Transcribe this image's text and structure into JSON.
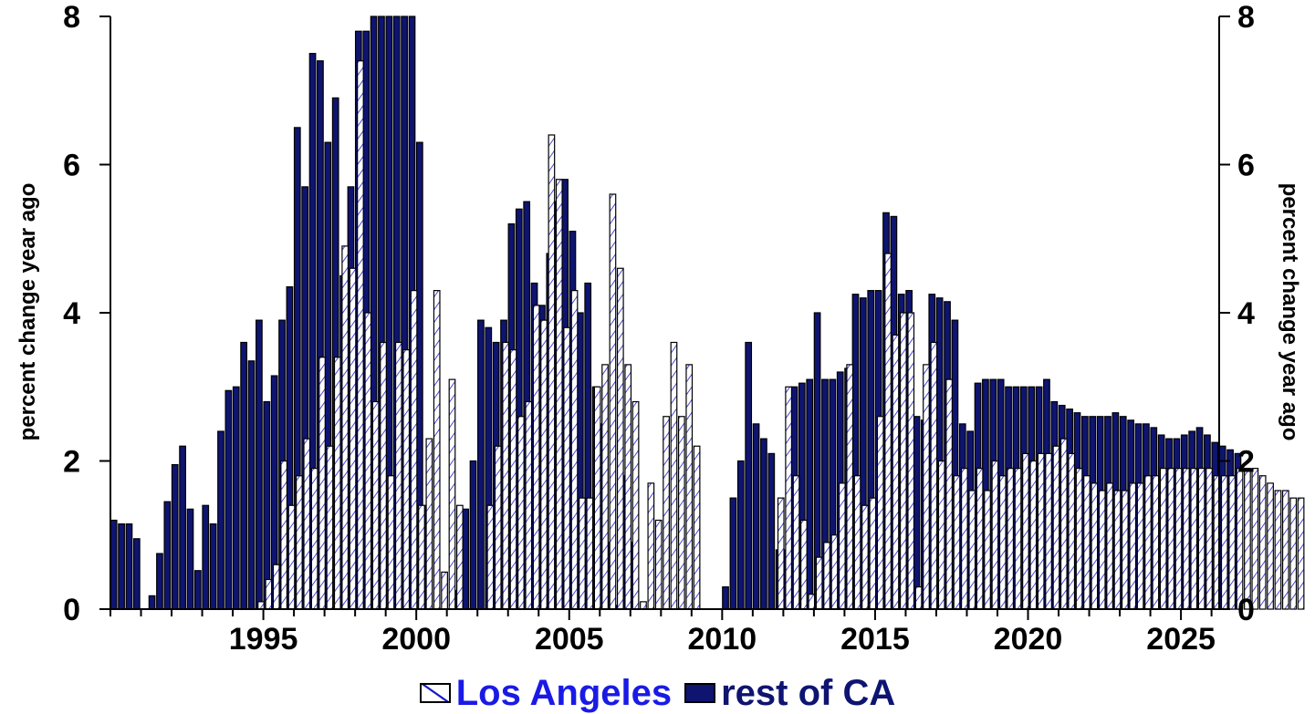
{
  "chart_data": {
    "type": "bar",
    "x_start": 1990.0,
    "x_step": 0.25,
    "x_range": [
      1990.0,
      2026.25
    ],
    "ylim": [
      0,
      8
    ],
    "yticks": [
      0,
      2,
      4,
      6,
      8
    ],
    "xticks": [
      1995,
      2000,
      2005,
      2010,
      2015,
      2020,
      2025
    ],
    "ylabel": "percent change year ago",
    "ylabel_right": "percent change year ago",
    "series": [
      {
        "name": "Los Angeles",
        "color": "#ffffff",
        "pattern_color": "#1c1cc8",
        "values": [
          0,
          0,
          0,
          0,
          0,
          0,
          0,
          0,
          0,
          0,
          0,
          0,
          0,
          0,
          0,
          0,
          0,
          0,
          0,
          0.1,
          0.4,
          0.6,
          2.0,
          1.4,
          1.8,
          2.3,
          1.9,
          3.4,
          2.2,
          3.4,
          4.9,
          4.6,
          7.4,
          4.0,
          2.8,
          3.6,
          1.8,
          3.6,
          3.5,
          4.3,
          1.4,
          2.3,
          4.3,
          0.5,
          3.1,
          1.4,
          0,
          0,
          0,
          1.4,
          2.2,
          3.6,
          3.5,
          2.6,
          2.8,
          4.1,
          3.9,
          6.4,
          5.8,
          3.8,
          4.3,
          1.5,
          1.5,
          3.0,
          3.3,
          5.6,
          4.6,
          3.3,
          2.8,
          0.1,
          1.7,
          1.2,
          2.6,
          3.6,
          2.6,
          3.3,
          2.2,
          0,
          0,
          0,
          0,
          0,
          0,
          0,
          0,
          0,
          0,
          1.5,
          3.0,
          1.8,
          1.2,
          0.2,
          0.7,
          0.9,
          1.0,
          1.7,
          3.3,
          1.8,
          1.4,
          1.5,
          2.6,
          4.8,
          3.7,
          4.0,
          4.0,
          0.3,
          3.3,
          3.6,
          2.0,
          3.1,
          1.8,
          1.9,
          1.6,
          1.9,
          1.6,
          2.0,
          1.8,
          1.9,
          1.9,
          2.1,
          2.0,
          2.1,
          2.1,
          2.2,
          2.3,
          2.1,
          1.9,
          1.8,
          1.7,
          1.6,
          1.7,
          1.6,
          1.6,
          1.7,
          1.7,
          1.8,
          1.8,
          1.9,
          1.9,
          1.9,
          1.9,
          1.9,
          1.9,
          1.9,
          1.8,
          1.8,
          1.8,
          1.9,
          1.9,
          1.9,
          1.8,
          1.7,
          1.6,
          1.6,
          1.5,
          1.5
        ]
      },
      {
        "name": "rest of CA",
        "color": "#0e1470",
        "values": [
          1.2,
          1.15,
          1.15,
          0.95,
          0,
          0.18,
          0.75,
          1.45,
          1.95,
          2.2,
          1.35,
          0.52,
          1.4,
          1.15,
          2.4,
          2.95,
          3.0,
          3.6,
          3.35,
          3.9,
          2.8,
          3.15,
          3.9,
          4.35,
          6.5,
          5.7,
          7.5,
          7.4,
          6.3,
          6.9,
          4.5,
          5.7,
          7.8,
          7.8,
          8,
          8,
          8,
          8,
          8,
          8,
          6.3,
          1.4,
          0,
          0,
          0,
          0.25,
          1.35,
          2.0,
          3.9,
          3.8,
          3.6,
          3.9,
          5.2,
          5.4,
          5.5,
          4.4,
          4.1,
          4.8,
          5.5,
          5.8,
          5.1,
          4.0,
          4.4,
          3.0,
          2.5,
          0.9,
          0.05,
          1.8,
          0.9,
          0,
          0,
          0,
          0,
          0,
          0,
          0,
          0,
          0,
          0,
          0,
          0.3,
          1.5,
          2.0,
          3.6,
          2.5,
          2.3,
          2.1,
          0.8,
          0.8,
          3.0,
          3.05,
          3.1,
          4.0,
          3.1,
          3.1,
          3.2,
          3.25,
          4.25,
          4.2,
          4.3,
          4.3,
          5.35,
          5.3,
          4.25,
          4.3,
          2.6,
          2.55,
          4.25,
          4.2,
          4.15,
          3.9,
          2.5,
          2.4,
          3.05,
          3.1,
          3.1,
          3.1,
          3.0,
          3.0,
          3.0,
          3.0,
          3.0,
          3.1,
          2.8,
          2.75,
          2.7,
          2.65,
          2.6,
          2.6,
          2.6,
          2.6,
          2.65,
          2.6,
          2.55,
          2.5,
          2.5,
          2.45,
          2.35,
          2.3,
          2.3,
          2.35,
          2.4,
          2.45,
          2.35,
          2.25,
          2.2,
          2.15,
          2.1
        ]
      }
    ],
    "legend": {
      "placement": "bottom-center"
    }
  }
}
